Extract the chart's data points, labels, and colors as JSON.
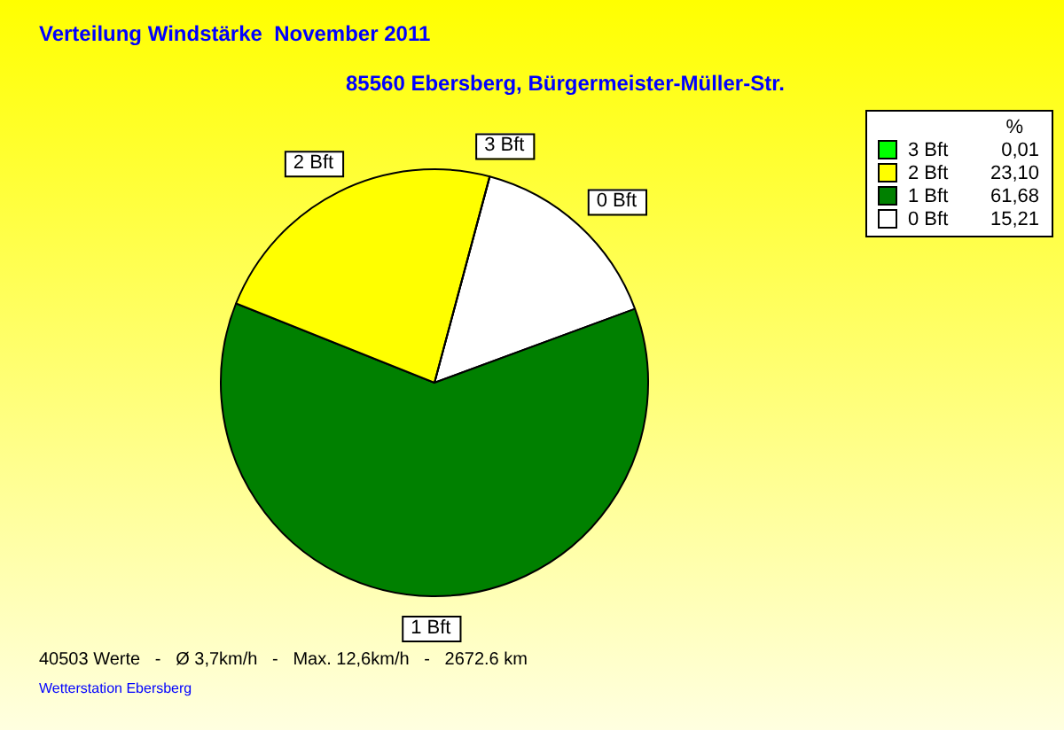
{
  "chart_data": {
    "type": "pie",
    "title": "Verteilung Windstärke  November 2011",
    "subtitle": "85560 Ebersberg, Bürgermeister-Müller-Str.",
    "legend_title": "%",
    "legend": "top right",
    "categories": [
      "0 Bft",
      "1 Bft",
      "2 Bft",
      "3 Bft"
    ],
    "values": [
      15.21,
      61.68,
      23.1,
      0.01
    ],
    "value_labels": [
      "15,21",
      "61,68",
      "23,10",
      "0,01"
    ],
    "colors": [
      "#ffffff",
      "#008000",
      "#ffff00",
      "#00ff00"
    ],
    "annotations": [
      "40503 Werte   -   Ø 3,7km/h   -   Max. 12,6km/h   -   2672.6 km",
      "Wetterstation Ebersberg"
    ]
  }
}
